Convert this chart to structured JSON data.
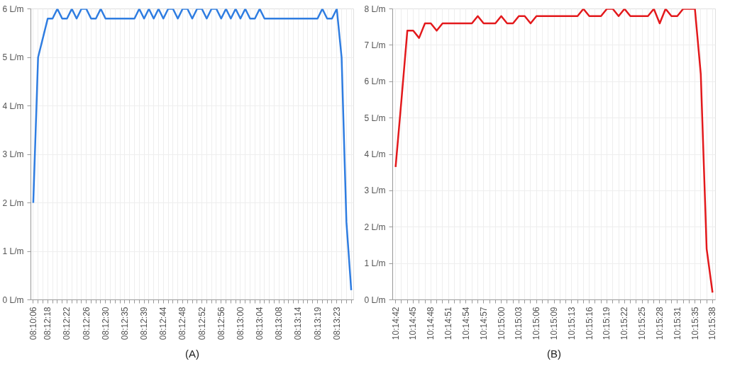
{
  "chart_data": [
    {
      "type": "line",
      "categories": [
        "08:10:06",
        null,
        null,
        "08:12:18",
        null,
        null,
        null,
        "08:12:22",
        null,
        null,
        null,
        "08:12:26",
        null,
        null,
        null,
        "08:12:30",
        null,
        null,
        null,
        "08:12:35",
        null,
        null,
        null,
        "08:12:39",
        null,
        null,
        null,
        "08:12:44",
        null,
        null,
        null,
        "08:12:48",
        null,
        null,
        null,
        "08:12:52",
        null,
        null,
        null,
        "08:12:56",
        null,
        null,
        null,
        "08:13:00",
        null,
        null,
        null,
        "08:13:04",
        null,
        null,
        null,
        "08:13:08",
        null,
        null,
        null,
        "08:13:14",
        null,
        null,
        null,
        "08:13:19",
        null,
        null,
        null,
        "08:13:23",
        null,
        null,
        null
      ],
      "series": [
        {
          "color": "#2f7de1",
          "values": [
            2.0,
            5.0,
            5.4,
            5.8,
            5.8,
            6.0,
            5.8,
            5.8,
            6.0,
            5.8,
            6.0,
            6.0,
            5.8,
            5.8,
            6.0,
            5.8,
            5.8,
            5.8,
            5.8,
            5.8,
            5.8,
            5.8,
            6.0,
            5.8,
            6.0,
            5.8,
            6.0,
            5.8,
            6.0,
            6.0,
            5.8,
            6.0,
            6.0,
            5.8,
            6.0,
            6.0,
            5.8,
            6.0,
            6.0,
            5.8,
            6.0,
            5.8,
            6.0,
            5.8,
            6.0,
            5.8,
            5.8,
            6.0,
            5.8,
            5.8,
            5.8,
            5.8,
            5.8,
            5.8,
            5.8,
            5.8,
            5.8,
            5.8,
            5.8,
            5.8,
            6.0,
            5.8,
            5.8,
            6.0,
            5.0,
            1.6,
            0.2
          ]
        }
      ],
      "ylim": [
        0,
        6
      ],
      "yticks": [
        {
          "value": 0,
          "label": "0 L/m"
        },
        {
          "value": 1,
          "label": "1 L/m"
        },
        {
          "value": 2,
          "label": "2 L/m"
        },
        {
          "value": 3,
          "label": "3 L/m"
        },
        {
          "value": 4,
          "label": "4 L/m"
        },
        {
          "value": 5,
          "label": "5 L/m"
        },
        {
          "value": 6,
          "label": "6 L/m"
        }
      ],
      "grid": true,
      "marker": "none",
      "line_style": "solid",
      "annotations": [
        "(A)"
      ]
    },
    {
      "type": "line",
      "categories": [
        "10:14:42",
        null,
        null,
        "10:14:45",
        null,
        null,
        "10:14:48",
        null,
        null,
        "10:14:51",
        null,
        null,
        "10:14:54",
        null,
        null,
        "10:14:57",
        null,
        null,
        "10:15:00",
        null,
        null,
        "10:15:03",
        null,
        null,
        "10:15:06",
        null,
        null,
        "10:15:09",
        null,
        null,
        "10:15:13",
        null,
        null,
        "10:15:16",
        null,
        null,
        "10:15:19",
        null,
        null,
        "10:15:22",
        null,
        null,
        "10:15:25",
        null,
        null,
        "10:15:28",
        null,
        null,
        "10:15:31",
        null,
        null,
        "10:15:35",
        null,
        null,
        "10:15:38"
      ],
      "series": [
        {
          "color": "#e3191c",
          "values": [
            3.65,
            5.5,
            7.4,
            7.4,
            7.2,
            7.6,
            7.6,
            7.4,
            7.6,
            7.6,
            7.6,
            7.6,
            7.6,
            7.6,
            7.8,
            7.6,
            7.6,
            7.6,
            7.8,
            7.6,
            7.6,
            7.8,
            7.8,
            7.6,
            7.8,
            7.8,
            7.8,
            7.8,
            7.8,
            7.8,
            7.8,
            7.8,
            8.0,
            7.8,
            7.8,
            7.8,
            8.0,
            8.0,
            7.8,
            8.0,
            7.8,
            7.8,
            7.8,
            7.8,
            8.0,
            7.6,
            8.0,
            7.8,
            7.8,
            8.0,
            8.0,
            8.0,
            6.2,
            1.4,
            0.2
          ]
        }
      ],
      "ylim": [
        0,
        8
      ],
      "yticks": [
        {
          "value": 0,
          "label": "0 L/m"
        },
        {
          "value": 1,
          "label": "1 L/m"
        },
        {
          "value": 2,
          "label": "2 L/m"
        },
        {
          "value": 3,
          "label": "3 L/m"
        },
        {
          "value": 4,
          "label": "4 L/m"
        },
        {
          "value": 5,
          "label": "5 L/m"
        },
        {
          "value": 6,
          "label": "6 L/m"
        },
        {
          "value": 7,
          "label": "7 L/m"
        },
        {
          "value": 8,
          "label": "8 L/m"
        }
      ],
      "grid": true,
      "marker": "none",
      "line_style": "solid",
      "annotations": [
        "(B)"
      ]
    }
  ]
}
